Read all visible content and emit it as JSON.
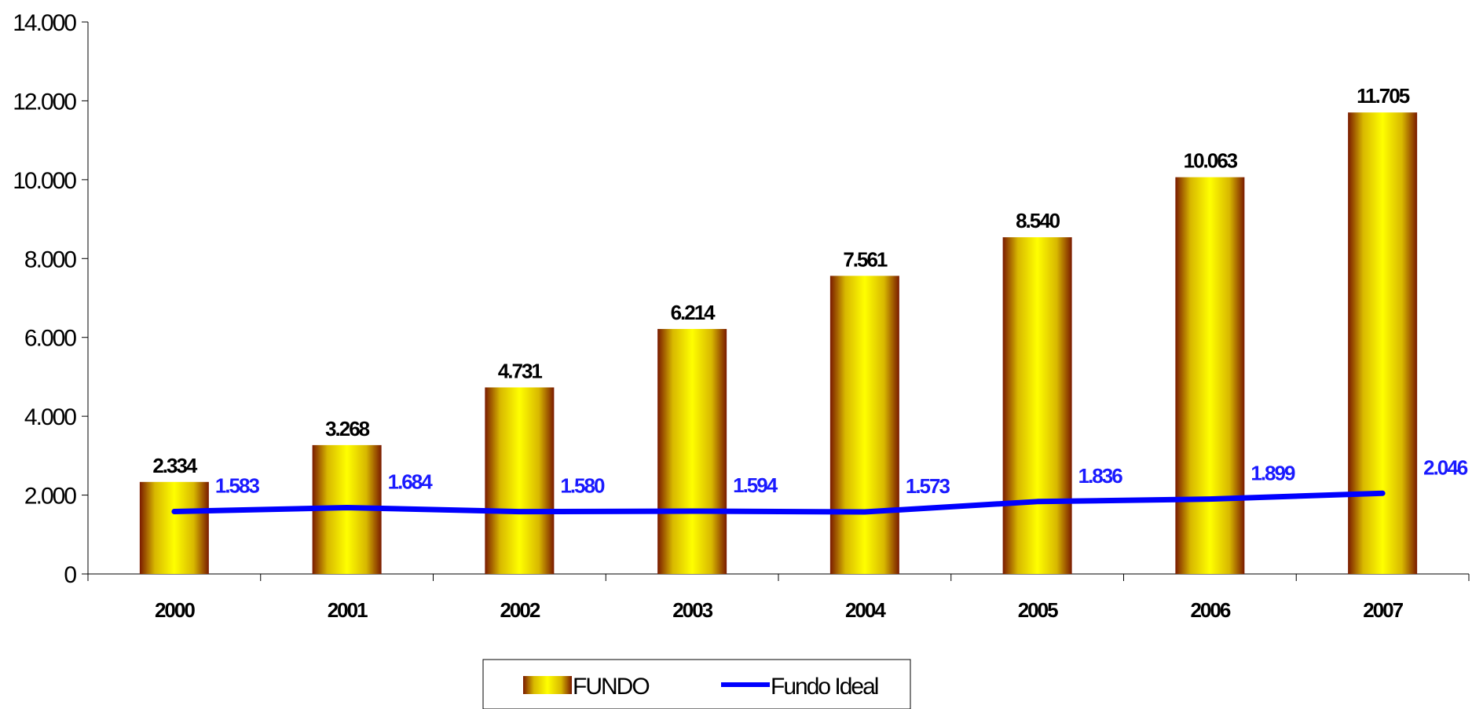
{
  "chart_data": {
    "type": "bar",
    "categories": [
      "2000",
      "2001",
      "2002",
      "2003",
      "2004",
      "2005",
      "2006",
      "2007"
    ],
    "series": [
      {
        "name": "FUNDO",
        "type": "bar",
        "values": [
          2334,
          3268,
          4731,
          6214,
          7561,
          8540,
          10063,
          11705
        ],
        "labels": [
          "2.334",
          "3.268",
          "4.731",
          "6.214",
          "7.561",
          "8.540",
          "10.063",
          "11.705"
        ]
      },
      {
        "name": "Fundo Ideal",
        "type": "line",
        "values": [
          1583,
          1684,
          1580,
          1594,
          1573,
          1836,
          1899,
          2046
        ],
        "labels": [
          "1.583",
          "1.684",
          "1.580",
          "1.594",
          "1.573",
          "1.836",
          "1.899",
          "2.046"
        ]
      }
    ],
    "y_ticks": [
      0,
      2000,
      4000,
      6000,
      8000,
      10000,
      12000,
      14000
    ],
    "y_tick_labels": [
      "0",
      "2.000",
      "4.000",
      "6.000",
      "8.000",
      "10.000",
      "12.000",
      "14.000"
    ],
    "ylim": [
      0,
      14000
    ],
    "grid": false,
    "legend_position": "bottom-center",
    "colors": {
      "bar_edge": "#7a1a00",
      "bar_mid": "#d8b800",
      "bar_center": "#ffff00",
      "line": "#0000ff",
      "line_label": "#1a1aff"
    }
  }
}
